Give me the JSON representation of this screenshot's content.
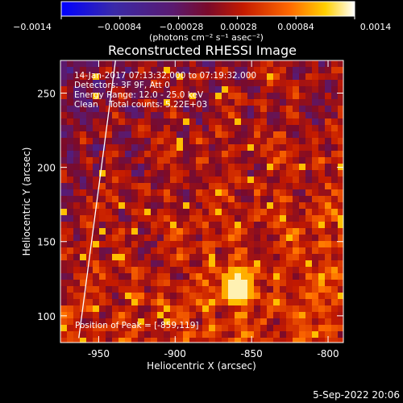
{
  "colorbar": {
    "ticks": [
      "−0.0014",
      "−0.00084",
      "−0.00028",
      "0.00028",
      "0.00084",
      "0.0014"
    ],
    "unit_label": "(photons cm⁻² s⁻¹ asec⁻²)",
    "range": [
      -0.0014,
      0.0014
    ]
  },
  "chart_data": {
    "type": "heatmap",
    "title": "Reconstructed RHESSI Image",
    "xlabel": "Heliocentric X (arcsec)",
    "ylabel": "Heliocentric Y (arcsec)",
    "xlim": [
      -975,
      -790
    ],
    "ylim": [
      82,
      272
    ],
    "x_ticks": [
      "-950",
      "-900",
      "-850",
      "-800"
    ],
    "x_tick_values": [
      -950,
      -900,
      -850,
      -800
    ],
    "y_ticks": [
      "100",
      "150",
      "200",
      "250"
    ],
    "y_tick_values": [
      100,
      150,
      200,
      250
    ],
    "annotations": [
      "14-Jan-2017 07:13:32.000 to 07:19:32.000",
      "Detectors: 3F 9F, Att 0",
      "Energy Range: 12.0 - 25.0 keV",
      "Clean    Total counts: 5.22E+03"
    ],
    "peak_label": "Position of Peak = [-859,119]",
    "peak": [
      -859,
      119
    ],
    "limb_line": [
      [
        -963,
        85
      ],
      [
        -939,
        272
      ]
    ]
  },
  "footer": {
    "date": "5-Sep-2022 20:06"
  },
  "colors": {
    "background": "#000000",
    "text": "#ffffff"
  }
}
